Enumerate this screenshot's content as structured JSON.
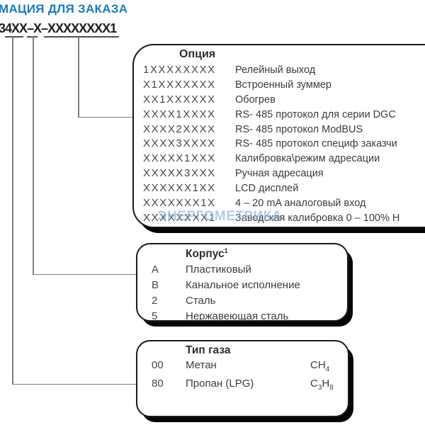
{
  "page": {
    "heading": "МАЦИЯ ДЛЯ ЗАКАЗА",
    "model_code": "34XX–X–XXXXXXXX1",
    "watermark": "ЭНЕРГОМЕТРИКА"
  },
  "colors": {
    "heading_blue": "#1b7abc",
    "watermark_blue": "#7facdb",
    "box_border": "#1a1a1a",
    "box_shadow": "#060606",
    "connector_gray": "#7e7e7e",
    "body_text": "#3c3c3c"
  },
  "option_box": {
    "title": "Опция",
    "rows": [
      {
        "code": "1XXXXXXXX",
        "label": "Релейный выход"
      },
      {
        "code": "X1XXXXXXX",
        "label": "Встроенный зуммер"
      },
      {
        "code": "XX1XXXXXX",
        "label": "Обогрев"
      },
      {
        "code": "XXXX1XXXX",
        "label": "RS- 485 протокол для серии DGC"
      },
      {
        "code": "XXXX2XXXX",
        "label": "RS- 485 протокол ModBUS"
      },
      {
        "code": "XXXX3XXXX",
        "label": "RS- 485 протокол специф заказчи"
      },
      {
        "code": "XXXXX1XXX",
        "label": "Калибровка\\режим адресации"
      },
      {
        "code": "XXXXX3XXX",
        "label": "Ручная адресация"
      },
      {
        "code": "XXXXXX1XX",
        "label": "LCD дисплей"
      },
      {
        "code": "XXXXXXX1X",
        "label": "4 – 20 mA аналоговый вход"
      },
      {
        "code": "XXXXXXXX1",
        "label": "Заводская калибровка 0 – 100% Н"
      }
    ]
  },
  "housing_box": {
    "title": "Корпус",
    "title_sup": "1",
    "rows": [
      {
        "code": "A",
        "label": "Пластиковый"
      },
      {
        "code": "B",
        "label": "Канальное исполнение"
      },
      {
        "code": "2",
        "label": "Сталь"
      },
      {
        "code": "5",
        "label": "Нержавеющая сталь"
      }
    ]
  },
  "gas_box": {
    "title": "Тип газа",
    "rows": [
      {
        "code": "00",
        "label": "Метан",
        "formula": {
          "p1": "CH",
          "s1": "4",
          "p2": "",
          "s2": ""
        }
      },
      {
        "code": "80",
        "label": "Пропан (LPG)",
        "formula": {
          "p1": "C",
          "s1": "3",
          "p2": "H",
          "s2": "8"
        }
      }
    ]
  }
}
